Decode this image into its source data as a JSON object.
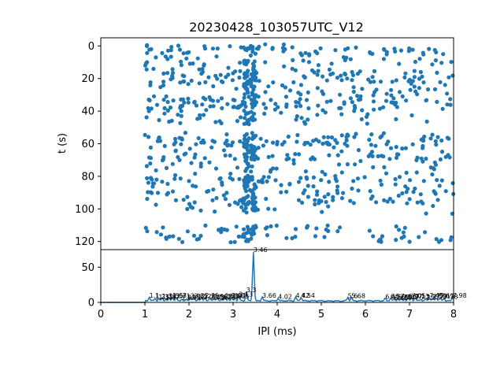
{
  "chart_data": [
    {
      "type": "scatter",
      "title": "20230428_103057UTC_V12",
      "xlabel": "",
      "ylabel": "t (s)",
      "xlim": [
        0,
        8
      ],
      "ylim": [
        125,
        -5
      ],
      "y_inverted": true,
      "yticks": [
        "0",
        "20",
        "40",
        "60",
        "80",
        "100",
        "120"
      ],
      "color": "#1f77b4",
      "grid": false,
      "dense_bands": [
        {
          "x": 3.3,
          "y_range": [
            0,
            120
          ]
        },
        {
          "x": 3.46,
          "y_range": [
            0,
            120
          ]
        }
      ],
      "gaps_y": [
        [
          48,
          53
        ],
        [
          103,
          110
        ]
      ]
    },
    {
      "type": "line",
      "xlabel": "IPI (ms)",
      "ylabel": "",
      "xlim": [
        0,
        8
      ],
      "ylim": [
        0,
        75
      ],
      "xticks": [
        "0",
        "1",
        "2",
        "3",
        "4",
        "5",
        "6",
        "7",
        "8"
      ],
      "yticks": [
        "0",
        "50"
      ],
      "color": "#1f77b4",
      "peaks": [
        {
          "x": 1.1,
          "label": "1.1"
        },
        {
          "x": 1.23,
          "label": "1.23"
        },
        {
          "x": 1.31,
          "label": "1.31"
        },
        {
          "x": 1.39,
          "label": "1.39"
        },
        {
          "x": 1.47,
          "label": "1.47"
        },
        {
          "x": 1.55,
          "label": "1.55"
        },
        {
          "x": 1.63,
          "label": "1.63"
        },
        {
          "x": 1.71,
          "label": "1.71"
        },
        {
          "x": 1.83,
          "label": "1.83"
        },
        {
          "x": 1.95,
          "label": "1.95"
        },
        {
          "x": 2.03,
          "label": "2.03"
        },
        {
          "x": 2.11,
          "label": "2.11"
        },
        {
          "x": 2.2,
          "label": "2.2"
        },
        {
          "x": 2.28,
          "label": "2.28"
        },
        {
          "x": 2.36,
          "label": "2.36"
        },
        {
          "x": 2.48,
          "label": "2.48"
        },
        {
          "x": 2.56,
          "label": "2.56"
        },
        {
          "x": 2.64,
          "label": "2.64"
        },
        {
          "x": 2.73,
          "label": "2.73"
        },
        {
          "x": 2.81,
          "label": "2.81"
        },
        {
          "x": 2.89,
          "label": "2.89"
        },
        {
          "x": 2.97,
          "label": "2.97"
        },
        {
          "x": 3.05,
          "label": "3.05"
        },
        {
          "x": 3.13,
          "label": "3.13"
        },
        {
          "x": 3.3,
          "label": "3.3"
        },
        {
          "x": 3.46,
          "label": "3.46"
        },
        {
          "x": 3.66,
          "label": "3.66"
        },
        {
          "x": 4.02,
          "label": "4.02"
        },
        {
          "x": 4.42,
          "label": "4.42"
        },
        {
          "x": 4.54,
          "label": "4.54"
        },
        {
          "x": 5.6,
          "label": "5.6"
        },
        {
          "x": 5.68,
          "label": "5.68"
        },
        {
          "x": 6.45,
          "label": "6.45"
        },
        {
          "x": 6.57,
          "label": "6.57"
        },
        {
          "x": 6.65,
          "label": "6.65"
        },
        {
          "x": 6.73,
          "label": "6.73"
        },
        {
          "x": 6.81,
          "label": "6.81"
        },
        {
          "x": 6.89,
          "label": "6.89"
        },
        {
          "x": 6.97,
          "label": "6.97"
        },
        {
          "x": 7.05,
          "label": "7.05"
        },
        {
          "x": 7.13,
          "label": "7.13"
        },
        {
          "x": 7.25,
          "label": "7.25"
        },
        {
          "x": 7.37,
          "label": "7.37"
        },
        {
          "x": 7.45,
          "label": "7.45"
        },
        {
          "x": 7.53,
          "label": "7.53"
        },
        {
          "x": 7.61,
          "label": "7.61"
        },
        {
          "x": 7.69,
          "label": "7.69"
        },
        {
          "x": 7.78,
          "label": "7.78"
        },
        {
          "x": 7.98,
          "label": "7.98"
        }
      ]
    }
  ]
}
